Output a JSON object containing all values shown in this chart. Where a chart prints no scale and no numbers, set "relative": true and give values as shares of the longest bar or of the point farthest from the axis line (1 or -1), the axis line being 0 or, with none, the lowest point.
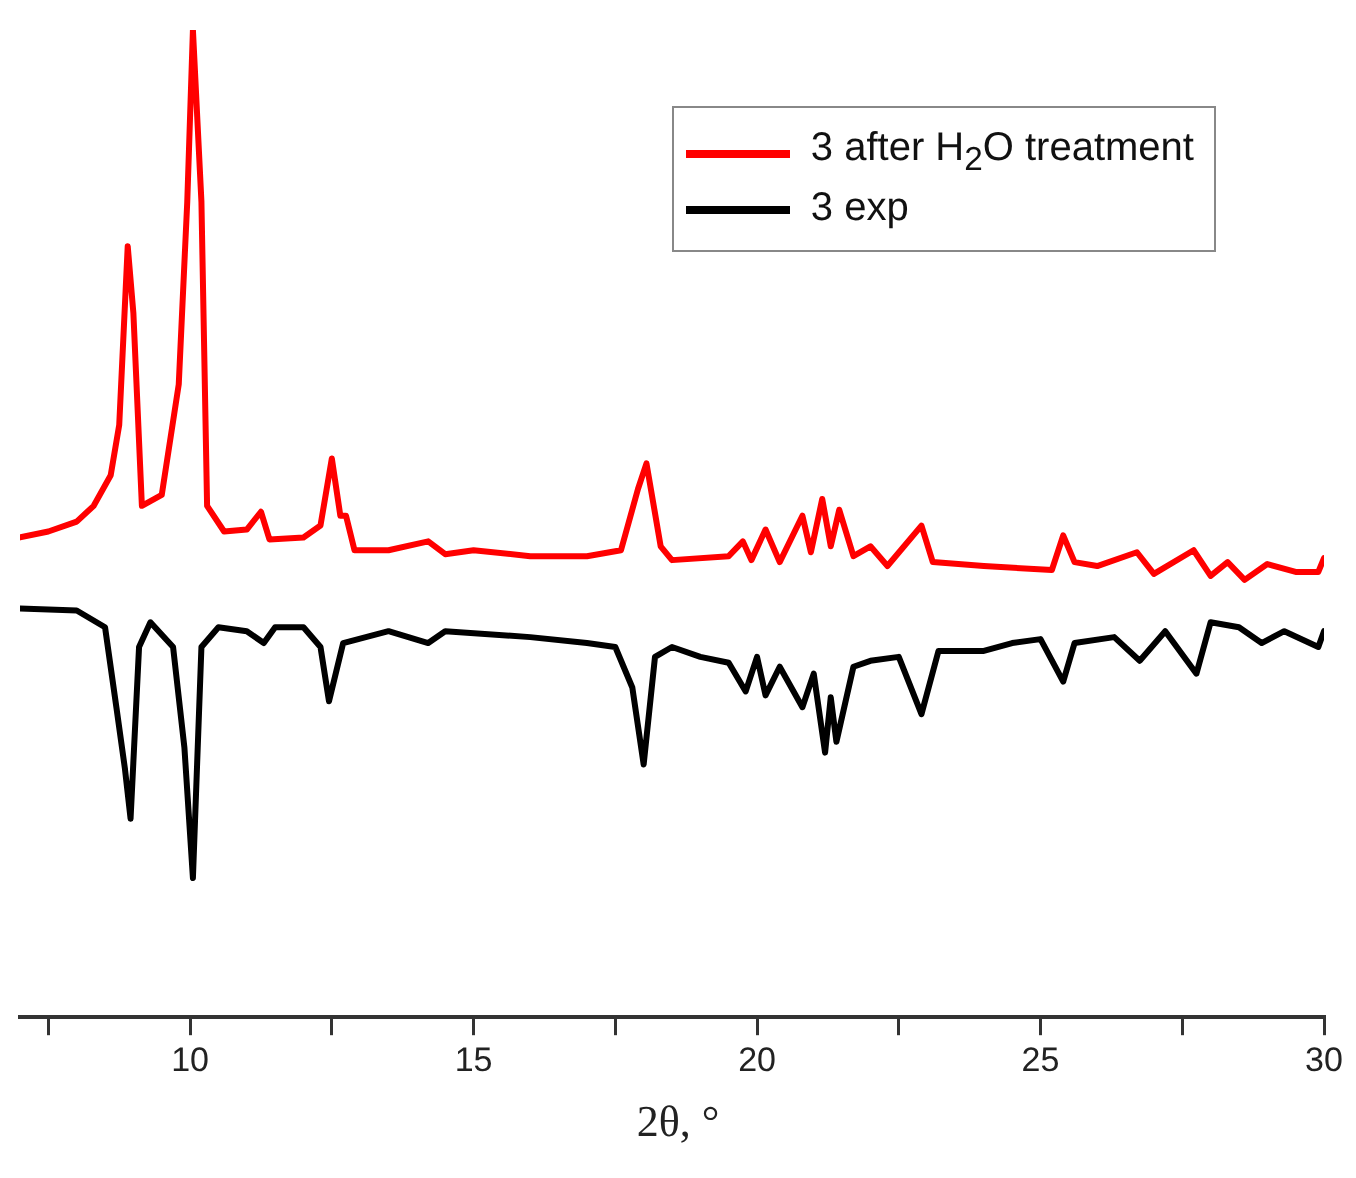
{
  "chart_data": {
    "type": "line",
    "relative": true,
    "xlabel": "2θ, °",
    "legend": "top right",
    "marker": "none",
    "line_style": "solid",
    "grid": false,
    "xlim": [
      7,
      30
    ],
    "xticks": [
      {
        "value": 7.5,
        "label": null
      },
      10,
      {
        "value": 12.5,
        "label": null
      },
      15,
      {
        "value": 17.5,
        "label": null
      },
      20,
      {
        "value": 22.5,
        "label": null
      },
      25,
      {
        "value": 27.5,
        "label": null
      },
      30
    ],
    "series": [
      {
        "name": "3 after H$_{2}$O treatment",
        "color": "#ff0000",
        "x": [
          7.0,
          7.5,
          8.0,
          8.3,
          8.6,
          8.75,
          8.9,
          9.0,
          9.15,
          9.5,
          9.8,
          9.95,
          10.05,
          10.2,
          10.3,
          10.6,
          11.0,
          11.25,
          11.4,
          12.0,
          12.3,
          12.5,
          12.65,
          12.75,
          12.9,
          13.5,
          14.2,
          14.5,
          15,
          16,
          17,
          17.6,
          17.9,
          18.05,
          18.3,
          18.5,
          19.5,
          19.75,
          19.9,
          20.15,
          20.4,
          20.8,
          20.95,
          21.15,
          21.3,
          21.45,
          21.7,
          22.0,
          22.3,
          22.9,
          23.1,
          24,
          25.2,
          25.4,
          25.6,
          26.0,
          26.7,
          27.0,
          27.7,
          28.0,
          28.3,
          28.6,
          29.0,
          29.5,
          29.9,
          30
        ],
        "values": [
          0.486,
          0.492,
          0.502,
          0.518,
          0.549,
          0.6,
          0.781,
          0.713,
          0.518,
          0.529,
          0.641,
          0.826,
          1,
          0.826,
          0.518,
          0.492,
          0.494,
          0.512,
          0.484,
          0.486,
          0.498,
          0.566,
          0.508,
          0.508,
          0.473,
          0.473,
          0.482,
          0.469,
          0.473,
          0.467,
          0.467,
          0.473,
          0.535,
          0.561,
          0.477,
          0.463,
          0.467,
          0.482,
          0.463,
          0.494,
          0.461,
          0.508,
          0.471,
          0.525,
          0.477,
          0.514,
          0.467,
          0.477,
          0.457,
          0.498,
          0.461,
          0.457,
          0.453,
          0.488,
          0.461,
          0.457,
          0.471,
          0.449,
          0.473,
          0.447,
          0.461,
          0.443,
          0.459,
          0.451,
          0.451,
          0.465
        ]
      },
      {
        "name": "3 exp",
        "color": "#000000",
        "x": [
          7.0,
          8.0,
          8.5,
          8.7,
          8.85,
          8.95,
          9.1,
          9.3,
          9.7,
          9.9,
          10.05,
          10.2,
          10.5,
          11.0,
          11.3,
          11.5,
          12.0,
          12.3,
          12.45,
          12.7,
          13.5,
          14.2,
          14.5,
          16,
          17,
          17.5,
          17.8,
          18.0,
          18.2,
          18.5,
          19.0,
          19.5,
          19.8,
          20.0,
          20.15,
          20.4,
          20.8,
          21.0,
          21.2,
          21.3,
          21.4,
          21.7,
          22.0,
          22.5,
          22.9,
          23.2,
          24,
          24.5,
          25.0,
          25.4,
          25.6,
          26.3,
          26.75,
          27.2,
          27.75,
          28.0,
          28.5,
          28.9,
          29.3,
          29.9,
          30
        ],
        "values": [
          0.414,
          0.412,
          0.395,
          0.314,
          0.252,
          0.201,
          0.375,
          0.4,
          0.375,
          0.273,
          0.141,
          0.375,
          0.395,
          0.391,
          0.379,
          0.395,
          0.395,
          0.375,
          0.32,
          0.379,
          0.391,
          0.379,
          0.391,
          0.385,
          0.379,
          0.375,
          0.334,
          0.256,
          0.365,
          0.375,
          0.365,
          0.359,
          0.33,
          0.365,
          0.326,
          0.355,
          0.314,
          0.348,
          0.268,
          0.324,
          0.279,
          0.355,
          0.361,
          0.365,
          0.307,
          0.371,
          0.371,
          0.379,
          0.383,
          0.34,
          0.379,
          0.385,
          0.361,
          0.391,
          0.348,
          0.4,
          0.395,
          0.379,
          0.391,
          0.375,
          0.391
        ]
      }
    ]
  }
}
